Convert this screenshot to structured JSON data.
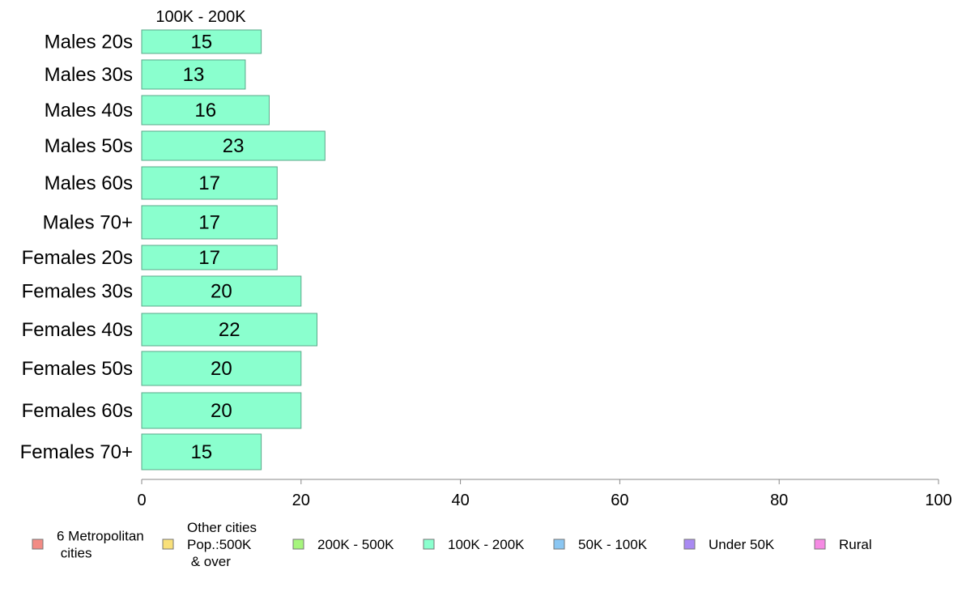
{
  "chart_data": {
    "type": "bar",
    "orientation": "horizontal",
    "panel_title": "100K - 200K",
    "categories": [
      "Males 20s",
      "Males 30s",
      "Males 40s",
      "Males 50s",
      "Males 60s",
      "Males 70+",
      "Females 20s",
      "Females 30s",
      "Females 40s",
      "Females 50s",
      "Females 60s",
      "Females 70+"
    ],
    "values": [
      15,
      13,
      16,
      23,
      17,
      17,
      17,
      20,
      22,
      20,
      20,
      15
    ],
    "bar_color": "#8affce",
    "xlim": [
      0,
      100
    ],
    "xticks": [
      0,
      20,
      40,
      60,
      80,
      100
    ],
    "grid": false,
    "legend_position": "bottom",
    "legend": [
      {
        "lines": [
          "6 Metropolitan",
          " cities"
        ],
        "color": "#f28b84"
      },
      {
        "lines": [
          "Other cities",
          "Pop.:500K",
          " & over"
        ],
        "color": "#f9e07a"
      },
      {
        "lines": [
          "200K - 500K"
        ],
        "color": "#a6f57d"
      },
      {
        "lines": [
          "100K - 200K"
        ],
        "color": "#8affce"
      },
      {
        "lines": [
          "50K - 100K"
        ],
        "color": "#8ac6f2"
      },
      {
        "lines": [
          "Under 50K"
        ],
        "color": "#a98af2"
      },
      {
        "lines": [
          "Rural"
        ],
        "color": "#f58ae3"
      }
    ]
  }
}
